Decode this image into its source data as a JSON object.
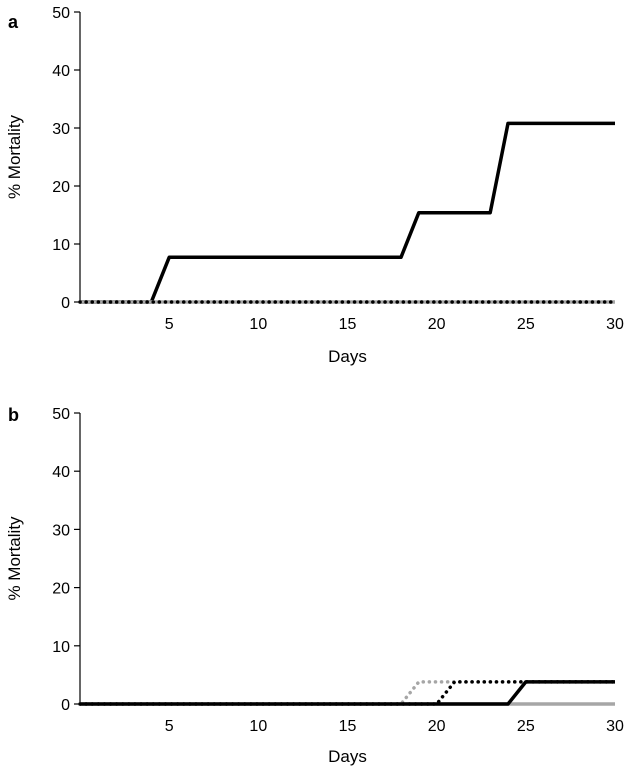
{
  "chart_data": [
    {
      "type": "line",
      "panel_label": "a",
      "xlabel": "Days",
      "ylabel": "% Mortality",
      "xlim": [
        0,
        30
      ],
      "ylim": [
        0,
        50
      ],
      "xticks": [
        5,
        10,
        15,
        20,
        25,
        30
      ],
      "yticks": [
        0,
        10,
        20,
        30,
        40,
        50
      ],
      "grid": false,
      "series": [
        {
          "style": "solid",
          "color": "#000000",
          "x": [
            0,
            4,
            5,
            18,
            19,
            23,
            24,
            30
          ],
          "y": [
            0,
            0,
            7.7,
            7.7,
            15.4,
            15.4,
            30.8,
            30.8
          ]
        },
        {
          "style": "solid",
          "color": "#a6a6a6",
          "x": [
            0,
            30
          ],
          "y": [
            0,
            0
          ]
        },
        {
          "style": "dotted",
          "color": "#a6a6a6",
          "x": [
            0,
            30
          ],
          "y": [
            0,
            0
          ]
        },
        {
          "style": "dotted",
          "color": "#000000",
          "x": [
            0,
            30
          ],
          "y": [
            0,
            0
          ]
        }
      ]
    },
    {
      "type": "line",
      "panel_label": "b",
      "xlabel": "Days",
      "ylabel": "% Mortality",
      "xlim": [
        0,
        30
      ],
      "ylim": [
        0,
        50
      ],
      "xticks": [
        5,
        10,
        15,
        20,
        25,
        30
      ],
      "yticks": [
        0,
        10,
        20,
        30,
        40,
        50
      ],
      "grid": false,
      "series": [
        {
          "style": "solid",
          "color": "#a6a6a6",
          "x": [
            0,
            30
          ],
          "y": [
            0,
            0
          ]
        },
        {
          "style": "dotted",
          "color": "#a6a6a6",
          "x": [
            0,
            18,
            19,
            25,
            30
          ],
          "y": [
            0,
            0,
            3.8,
            3.8,
            3.8
          ]
        },
        {
          "style": "dotted",
          "color": "#000000",
          "x": [
            0,
            20,
            21,
            30
          ],
          "y": [
            0,
            0,
            3.8,
            3.8
          ]
        },
        {
          "style": "solid",
          "color": "#000000",
          "x": [
            0,
            24,
            25,
            30
          ],
          "y": [
            0,
            0,
            3.8,
            3.8
          ]
        }
      ]
    }
  ]
}
